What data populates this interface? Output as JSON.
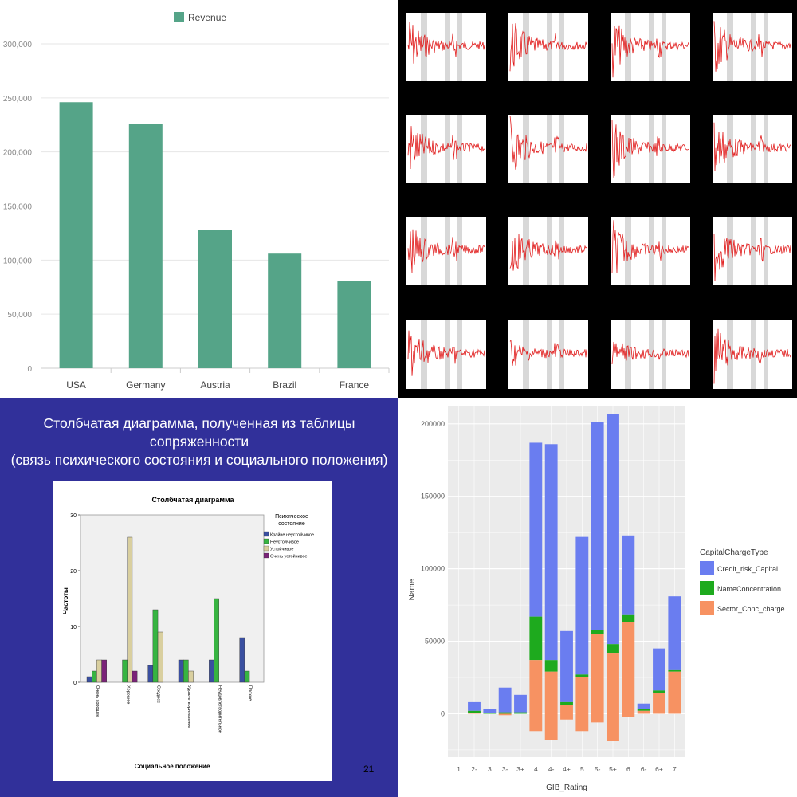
{
  "panels": [
    {
      "type": "bar",
      "legend": [
        "Revenue"
      ],
      "categories": [
        "USA",
        "Germany",
        "Austria",
        "Brazil",
        "France"
      ],
      "values": [
        246000,
        226000,
        128000,
        106000,
        81000
      ],
      "yticks": [
        "0",
        "50,000",
        "100,000",
        "150,000",
        "200,000",
        "250,000",
        "300,000"
      ],
      "ylim": [
        0,
        300000
      ],
      "colors": {
        "bar": "#55a488",
        "grid": "#e6e6e6"
      }
    },
    {
      "type": "line",
      "grid_layout": "4x4 small multiples",
      "colors": {
        "line": "#e01818",
        "band": "#d8d8d8",
        "background": "#000000"
      }
    },
    {
      "type": "bar",
      "slide_title": [
        "Столбчатая диаграмма, полученная из таблицы",
        "сопряженности",
        "(связь психического состояния и социального положения)"
      ],
      "title": "Столбчатая диаграмма",
      "xlabel": "Социальное положение",
      "ylabel": "Частоты",
      "legend_title": [
        "Психическое",
        "состояние"
      ],
      "categories": [
        "Очень хорошее",
        "Хорошее",
        "Среднее",
        "Удовлетворительное",
        "Неудовлетворительное",
        "Плохое"
      ],
      "yticks": [
        "0",
        "10",
        "20",
        "30"
      ],
      "ylim": [
        0,
        30
      ],
      "series": [
        {
          "name": "Крайне неустойчивое",
          "color": "#3a4fa0",
          "values": [
            1,
            0,
            3,
            4,
            4,
            8
          ]
        },
        {
          "name": "Неустойчивое",
          "color": "#37b441",
          "values": [
            2,
            4,
            13,
            4,
            15,
            2
          ]
        },
        {
          "name": "Устойчивое",
          "color": "#d9cf9f",
          "values": [
            4,
            26,
            9,
            2,
            0,
            0
          ]
        },
        {
          "name": "Очень устойчивое",
          "color": "#7a2378",
          "values": [
            4,
            2,
            0,
            0,
            0,
            0
          ]
        }
      ],
      "slide_number": "21"
    },
    {
      "type": "bar",
      "xlabel": "GIB_Rating",
      "ylabel": "Name",
      "categories": [
        "1",
        "2-",
        "3",
        "3-",
        "3+",
        "4",
        "4-",
        "4+",
        "5",
        "5-",
        "5+",
        "6",
        "6-",
        "6+",
        "7"
      ],
      "ylim": [
        -30000,
        212000
      ],
      "yticks": [
        "0",
        "50000",
        "100000",
        "150000",
        "200000"
      ],
      "legend_title": "CapitalChargeType",
      "series": [
        {
          "name": "Credit_risk_Capital",
          "color": "#6a7df0",
          "low": [
            0,
            2000,
            500,
            1000,
            1000,
            67000,
            37000,
            8000,
            27000,
            58000,
            48000,
            68000,
            3000,
            16000,
            30000
          ],
          "high": [
            0,
            8000,
            3000,
            18000,
            13000,
            187000,
            186000,
            57000,
            122000,
            201000,
            207000,
            123000,
            7000,
            45000,
            81000
          ]
        },
        {
          "name": "NameConcentration",
          "color": "#1eaa1e",
          "low": [
            0,
            500,
            0,
            0,
            0,
            37000,
            29000,
            6000,
            25000,
            55000,
            42000,
            63000,
            2000,
            14000,
            29000
          ],
          "high": [
            0,
            2000,
            500,
            1000,
            1000,
            67000,
            37000,
            8000,
            27000,
            58000,
            48000,
            68000,
            3000,
            16000,
            30000
          ]
        },
        {
          "name": "Sector_Conc_charge",
          "color": "#f79262",
          "low": [
            0,
            0,
            0,
            -1000,
            0,
            -12000,
            -18000,
            -4000,
            -12000,
            -6000,
            -19000,
            -2000,
            0,
            0,
            0
          ],
          "high": [
            0,
            500,
            0,
            0,
            0,
            37000,
            29000,
            6000,
            25000,
            55000,
            42000,
            63000,
            2000,
            14000,
            29000
          ]
        }
      ]
    }
  ]
}
